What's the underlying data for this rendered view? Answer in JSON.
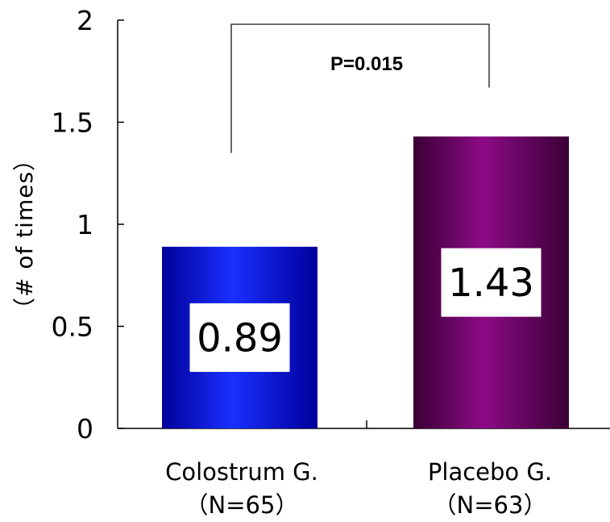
{
  "chart_data": {
    "type": "bar",
    "title": "",
    "xlabel": "",
    "ylabel": "（# of times）",
    "ylim": [
      0,
      2
    ],
    "yticks": [
      0,
      0.5,
      1,
      1.5,
      2
    ],
    "ytick_labels": [
      "0",
      "0.5",
      "1",
      "1.5",
      "2"
    ],
    "grid": false,
    "categories": [
      {
        "name": "Colostrum G.",
        "n": "（N=65）"
      },
      {
        "name": "Placebo G.",
        "n": "（N=63）"
      }
    ],
    "values": [
      0.89,
      1.43
    ],
    "value_labels": [
      "0.89",
      "1.43"
    ],
    "colors": [
      {
        "dark": "#00009a",
        "light": "#1a30ff"
      },
      {
        "dark": "#3a0035",
        "light": "#8c0a86"
      }
    ],
    "annotation": {
      "text": "P=0.015",
      "between": [
        0,
        1
      ],
      "left_y": 1.35,
      "right_y": 1.67,
      "top_y": 1.98
    }
  }
}
